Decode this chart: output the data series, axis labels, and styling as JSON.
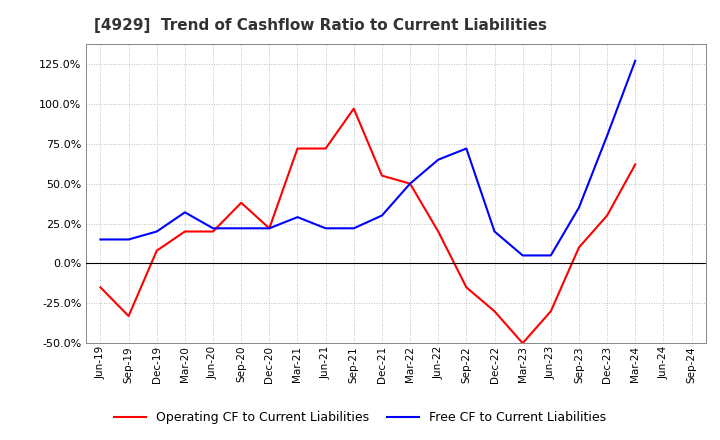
{
  "title": "[4929]  Trend of Cashflow Ratio to Current Liabilities",
  "x_labels": [
    "Jun-19",
    "Sep-19",
    "Dec-19",
    "Mar-20",
    "Jun-20",
    "Sep-20",
    "Dec-20",
    "Mar-21",
    "Jun-21",
    "Sep-21",
    "Dec-21",
    "Mar-22",
    "Jun-22",
    "Sep-22",
    "Dec-22",
    "Mar-23",
    "Jun-23",
    "Sep-23",
    "Dec-23",
    "Mar-24",
    "Jun-24",
    "Sep-24"
  ],
  "operating_cf": [
    -15.0,
    -33.0,
    8.0,
    20.0,
    20.0,
    38.0,
    22.0,
    72.0,
    72.0,
    97.0,
    55.0,
    50.0,
    20.0,
    -15.0,
    -30.0,
    -50.0,
    -30.0,
    10.0,
    30.0,
    62.0,
    null,
    null
  ],
  "free_cf": [
    15.0,
    15.0,
    20.0,
    32.0,
    22.0,
    22.0,
    22.0,
    29.0,
    22.0,
    22.0,
    30.0,
    50.0,
    65.0,
    72.0,
    20.0,
    5.0,
    5.0,
    35.0,
    80.0,
    127.0,
    null,
    null
  ],
  "ylim": [
    -50.0,
    137.5
  ],
  "yticks": [
    -50.0,
    -25.0,
    0.0,
    25.0,
    50.0,
    75.0,
    100.0,
    125.0
  ],
  "operating_color": "#FF0000",
  "free_color": "#0000FF",
  "background_color": "#FFFFFF",
  "grid_color": "#AAAAAA",
  "legend_op": "Operating CF to Current Liabilities",
  "legend_free": "Free CF to Current Liabilities"
}
